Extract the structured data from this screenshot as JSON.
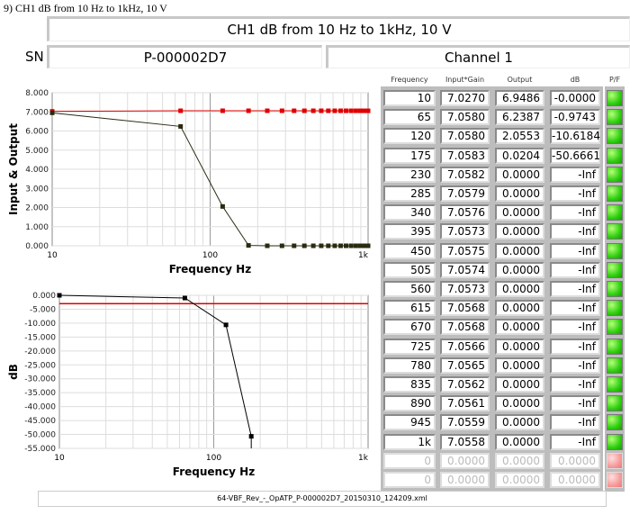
{
  "doc_title": "9) CH1 dB from 10 Hz to 1kHz, 10 V",
  "test_title": "CH1 dB from 10 Hz to 1kHz, 10 V",
  "sn_label": "SN",
  "serial_number": "P-000002D7",
  "channel": "Channel 1",
  "table": {
    "headers": [
      "Frequency",
      "Input*Gain",
      "Output",
      "dB",
      "P/F"
    ],
    "rows": [
      [
        "10",
        "7.0270",
        "6.9486",
        "-0.0000",
        "pass"
      ],
      [
        "65",
        "7.0580",
        "6.2387",
        "-0.9743",
        "pass"
      ],
      [
        "120",
        "7.0580",
        "2.0553",
        "-10.6184",
        "pass"
      ],
      [
        "175",
        "7.0583",
        "0.0204",
        "-50.6661",
        "pass"
      ],
      [
        "230",
        "7.0582",
        "0.0000",
        "-Inf",
        "pass"
      ],
      [
        "285",
        "7.0579",
        "0.0000",
        "-Inf",
        "pass"
      ],
      [
        "340",
        "7.0576",
        "0.0000",
        "-Inf",
        "pass"
      ],
      [
        "395",
        "7.0573",
        "0.0000",
        "-Inf",
        "pass"
      ],
      [
        "450",
        "7.0575",
        "0.0000",
        "-Inf",
        "pass"
      ],
      [
        "505",
        "7.0574",
        "0.0000",
        "-Inf",
        "pass"
      ],
      [
        "560",
        "7.0573",
        "0.0000",
        "-Inf",
        "pass"
      ],
      [
        "615",
        "7.0568",
        "0.0000",
        "-Inf",
        "pass"
      ],
      [
        "670",
        "7.0568",
        "0.0000",
        "-Inf",
        "pass"
      ],
      [
        "725",
        "7.0566",
        "0.0000",
        "-Inf",
        "pass"
      ],
      [
        "780",
        "7.0565",
        "0.0000",
        "-Inf",
        "pass"
      ],
      [
        "835",
        "7.0562",
        "0.0000",
        "-Inf",
        "pass"
      ],
      [
        "890",
        "7.0561",
        "0.0000",
        "-Inf",
        "pass"
      ],
      [
        "945",
        "7.0559",
        "0.0000",
        "-Inf",
        "pass"
      ],
      [
        "1k",
        "7.0558",
        "0.0000",
        "-Inf",
        "pass"
      ],
      [
        "0",
        "0.0000",
        "0.0000",
        "0.0000",
        "fail"
      ],
      [
        "0",
        "0.0000",
        "0.0000",
        "0.0000",
        "fail"
      ]
    ]
  },
  "footer_file": "64-VBF_Rev_-_OpATP_P-000002D7_20150310_124209.xml",
  "chart_data": [
    {
      "type": "line",
      "xlabel": "Frequency Hz",
      "ylabel": "Input & Output",
      "xscale": "log",
      "xlim": [
        10,
        1000
      ],
      "ylim": [
        0,
        8
      ],
      "xticks": [
        "10",
        "100",
        "1k"
      ],
      "yticks": [
        "8.000",
        "7.000",
        "6.000",
        "5.000",
        "4.000",
        "3.000",
        "2.000",
        "1.000",
        "0.000"
      ],
      "grid": true,
      "x": [
        10,
        65,
        120,
        175,
        230,
        285,
        340,
        395,
        450,
        505,
        560,
        615,
        670,
        725,
        780,
        835,
        890,
        945,
        1000
      ],
      "series": [
        {
          "color": "#e00000",
          "values": [
            7.027,
            7.058,
            7.058,
            7.0583,
            7.0582,
            7.0579,
            7.0576,
            7.0573,
            7.0575,
            7.0574,
            7.0573,
            7.0568,
            7.0568,
            7.0566,
            7.0565,
            7.0562,
            7.0561,
            7.0559,
            7.0558
          ]
        },
        {
          "color": "#2a2a10",
          "values": [
            6.9486,
            6.2387,
            2.0553,
            0.0204,
            0,
            0,
            0,
            0,
            0,
            0,
            0,
            0,
            0,
            0,
            0,
            0,
            0,
            0,
            0
          ]
        }
      ]
    },
    {
      "type": "line",
      "xlabel": "Frequency Hz",
      "ylabel": "dB",
      "xscale": "log",
      "xlim": [
        10,
        1000
      ],
      "ylim": [
        -55,
        0
      ],
      "xticks": [
        "10",
        "100",
        "1k"
      ],
      "yticks": [
        "0.000",
        "-5.000",
        "-10.000",
        "-15.000",
        "-20.000",
        "-25.000",
        "-30.000",
        "-35.000",
        "-40.000",
        "-45.000",
        "-50.000",
        "-55.000"
      ],
      "grid": true,
      "x": [
        10,
        65,
        120,
        175
      ],
      "series": [
        {
          "color": "#000000",
          "values": [
            0,
            -0.9743,
            -10.6184,
            -50.6661
          ]
        }
      ],
      "limit_line": {
        "value": -3,
        "color": "#e00000"
      }
    }
  ]
}
